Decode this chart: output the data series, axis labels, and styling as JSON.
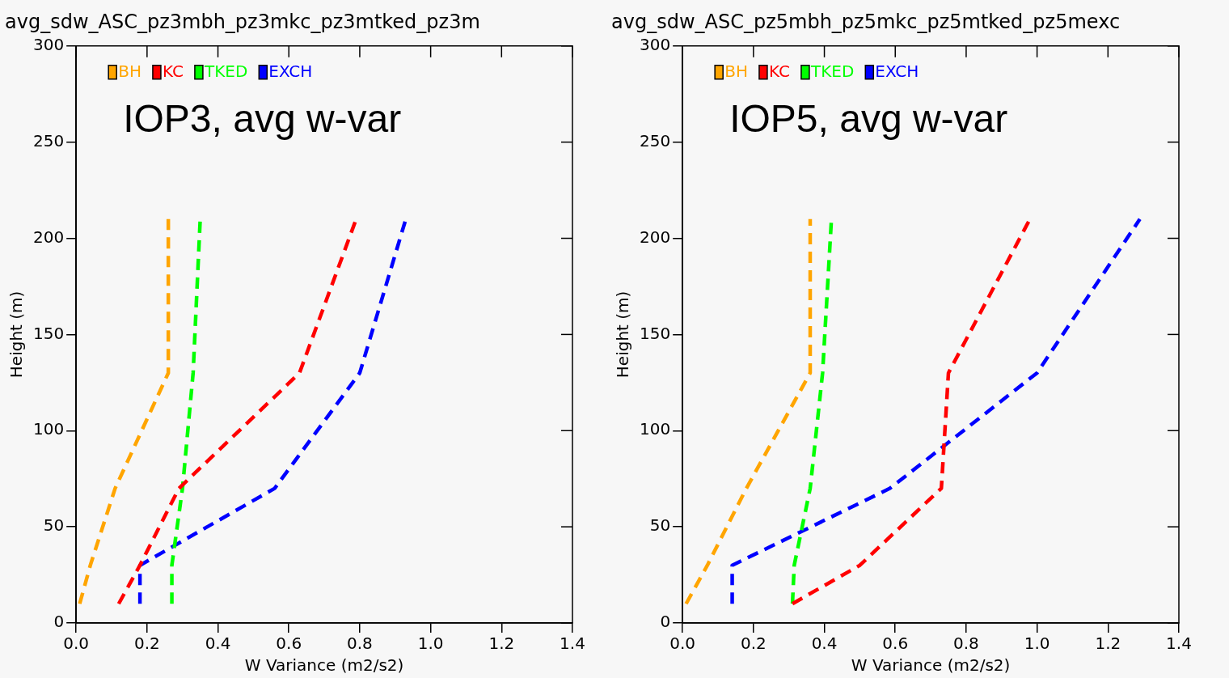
{
  "chart_data": [
    {
      "type": "line",
      "title": "avg_sdw_ASC_pz3mbh_pz3mkc_pz3mtked_pz3m",
      "xlabel": "W Variance (m2/s2)",
      "ylabel": "Height (m)",
      "annotations": [
        "IOP3, avg w-var"
      ],
      "legend": "top left",
      "grid": false,
      "marker": "none",
      "line_style": "dashed",
      "xlim": [
        0,
        1.4
      ],
      "xticks": [
        {
          "value": 0,
          "label": "0.0"
        },
        {
          "value": 0.2,
          "label": "0.2"
        },
        {
          "value": 0.4,
          "label": "0.4"
        },
        {
          "value": 0.6,
          "label": "0.6"
        },
        {
          "value": 0.8,
          "label": "0.8"
        },
        {
          "value": 1,
          "label": "1.0"
        },
        {
          "value": 1.2,
          "label": "1.2"
        },
        {
          "value": 1.4,
          "label": "1.4"
        }
      ],
      "ylim": [
        0,
        300
      ],
      "yticks": [
        0,
        50,
        100,
        150,
        200,
        250,
        300
      ],
      "series": [
        {
          "name": "BH",
          "color": "#ffa500",
          "x": [
            0.01,
            0.04,
            0.11,
            0.26,
            0.26
          ],
          "values": [
            10,
            30,
            70,
            130,
            210
          ]
        },
        {
          "name": "KC",
          "color": "#ff0000",
          "x": [
            0.12,
            0.18,
            0.29,
            0.63,
            0.79
          ],
          "values": [
            10,
            30,
            70,
            130,
            210
          ]
        },
        {
          "name": "TKED",
          "color": "#00ff00",
          "x": [
            0.27,
            0.27,
            0.3,
            0.33,
            0.35
          ],
          "values": [
            10,
            30,
            70,
            130,
            210
          ]
        },
        {
          "name": "EXCH",
          "color": "#0000ff",
          "x": [
            0.18,
            0.18,
            0.56,
            0.8,
            0.93
          ],
          "values": [
            10,
            30,
            70,
            130,
            210
          ]
        }
      ]
    },
    {
      "type": "line",
      "title": "avg_sdw_ASC_pz5mbh_pz5mkc_pz5mtked_pz5mexc",
      "xlabel": "W Variance (m2/s2)",
      "ylabel": "Height (m)",
      "annotations": [
        "IOP5, avg w-var"
      ],
      "legend": "top left",
      "grid": false,
      "marker": "none",
      "line_style": "dashed",
      "xlim": [
        0,
        1.4
      ],
      "xticks": [
        {
          "value": 0,
          "label": "0.0"
        },
        {
          "value": 0.2,
          "label": "0.2"
        },
        {
          "value": 0.4,
          "label": "0.4"
        },
        {
          "value": 0.6,
          "label": "0.6"
        },
        {
          "value": 0.8,
          "label": "0.8"
        },
        {
          "value": 1,
          "label": "1.0"
        },
        {
          "value": 1.2,
          "label": "1.2"
        },
        {
          "value": 1.4,
          "label": "1.4"
        }
      ],
      "ylim": [
        0,
        300
      ],
      "yticks": [
        0,
        50,
        100,
        150,
        200,
        250,
        300
      ],
      "series": [
        {
          "name": "BH",
          "color": "#ffa500",
          "x": [
            0.01,
            0.07,
            0.18,
            0.36,
            0.36
          ],
          "values": [
            10,
            30,
            70,
            130,
            210
          ]
        },
        {
          "name": "KC",
          "color": "#ff0000",
          "x": [
            0.31,
            0.5,
            0.73,
            0.75,
            0.98
          ],
          "values": [
            10,
            30,
            70,
            130,
            210
          ]
        },
        {
          "name": "TKED",
          "color": "#00ff00",
          "x": [
            0.31,
            0.315,
            0.36,
            0.395,
            0.42
          ],
          "values": [
            10,
            30,
            70,
            130,
            210
          ]
        },
        {
          "name": "EXCH",
          "color": "#0000ff",
          "x": [
            0.14,
            0.14,
            0.585,
            1.0,
            1.29
          ],
          "values": [
            10,
            30,
            70,
            130,
            210
          ]
        }
      ]
    }
  ]
}
